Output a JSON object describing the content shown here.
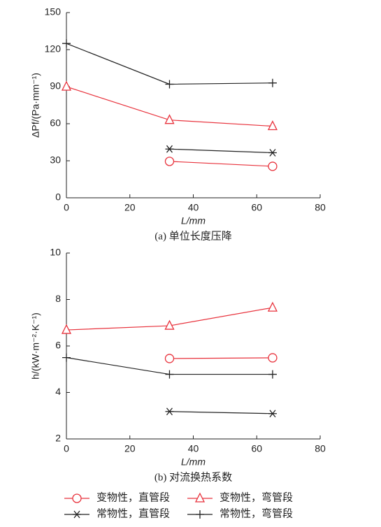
{
  "chart_data": [
    {
      "type": "line",
      "caption": "(a) 单位长度压降",
      "ylabel": "ΔPf/(Pa·mm⁻¹)",
      "xlabel": "L/mm",
      "xlim": [
        0,
        80
      ],
      "xticks": [
        0,
        20,
        40,
        60,
        80
      ],
      "ylim": [
        0,
        150
      ],
      "yticks": [
        0,
        30,
        60,
        90,
        120,
        150
      ],
      "series": [
        {
          "marker": "circle",
          "color": "#e8323c",
          "x": [
            32.5,
            65
          ],
          "values": [
            29.5,
            25.5
          ]
        },
        {
          "marker": "triangle",
          "color": "#e8323c",
          "x": [
            0,
            32.5,
            65
          ],
          "values": [
            90,
            63,
            58
          ]
        },
        {
          "marker": "star",
          "color": "#222222",
          "x": [
            32.5,
            65
          ],
          "values": [
            39.5,
            36.5
          ]
        },
        {
          "marker": "plus",
          "color": "#222222",
          "x": [
            0,
            32.5,
            65
          ],
          "values": [
            125,
            92,
            93
          ]
        }
      ]
    },
    {
      "type": "line",
      "caption": "(b) 对流换热系数",
      "ylabel": "h/(kW·m⁻²·K⁻¹)",
      "xlabel": "L/mm",
      "xlim": [
        0,
        80
      ],
      "xticks": [
        0,
        20,
        40,
        60,
        80
      ],
      "ylim": [
        2,
        10
      ],
      "yticks": [
        2,
        4,
        6,
        8,
        10
      ],
      "series": [
        {
          "name": "变物性，直管段",
          "marker": "circle",
          "color": "#e8323c",
          "x": [
            32.5,
            65
          ],
          "values": [
            5.46,
            5.49
          ]
        },
        {
          "name": "变物性，弯管段",
          "marker": "triangle",
          "color": "#e8323c",
          "x": [
            0,
            32.5,
            65
          ],
          "values": [
            6.69,
            6.87,
            7.65
          ]
        },
        {
          "name": "常物性，直管段",
          "marker": "star",
          "color": "#222222",
          "x": [
            32.5,
            65
          ],
          "values": [
            3.18,
            3.09
          ]
        },
        {
          "name": "常物性，弯管段",
          "marker": "plus",
          "color": "#222222",
          "x": [
            0,
            32.5,
            65
          ],
          "values": [
            5.5,
            4.78,
            4.78
          ]
        }
      ]
    }
  ]
}
